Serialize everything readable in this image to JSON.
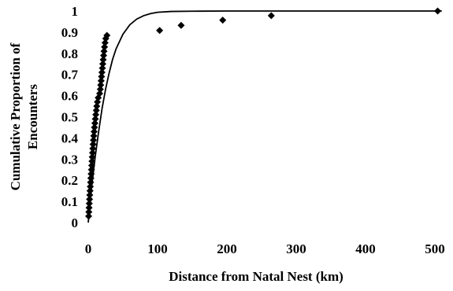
{
  "chart_data": {
    "type": "scatter",
    "title": "",
    "xlabel": "Distance from Natal Nest (km)",
    "ylabel": "Cumulative Proportion of Encounters",
    "ylabel_lines": [
      "Cumulative Proportion of",
      "Encounters"
    ],
    "xlim": [
      0,
      500
    ],
    "ylim": [
      0,
      1
    ],
    "x_ticks": [
      0,
      100,
      200,
      300,
      400,
      500
    ],
    "y_ticks": [
      0,
      0.1,
      0.2,
      0.3,
      0.4,
      0.5,
      0.6,
      0.7,
      0.8,
      0.9,
      1
    ],
    "x_tick_labels": [
      "0",
      "100",
      "200",
      "300",
      "400",
      "500"
    ],
    "y_tick_labels": [
      "0",
      "0.1",
      "0.2",
      "0.3",
      "0.4",
      "0.5",
      "0.6",
      "0.7",
      "0.8",
      "0.9",
      "1"
    ],
    "grid": false,
    "legend": "none",
    "series": [
      {
        "kind": "points",
        "marker": "diamond",
        "color": "#000000",
        "points": [
          [
            0.6,
            0.03
          ],
          [
            0.9,
            0.05
          ],
          [
            1.2,
            0.07
          ],
          [
            1.5,
            0.09
          ],
          [
            1.9,
            0.11
          ],
          [
            2.2,
            0.13
          ],
          [
            2.6,
            0.15
          ],
          [
            3.0,
            0.17
          ],
          [
            3.4,
            0.19
          ],
          [
            3.8,
            0.21
          ],
          [
            4.2,
            0.23
          ],
          [
            4.6,
            0.25
          ],
          [
            5.0,
            0.27
          ],
          [
            5.4,
            0.29
          ],
          [
            5.8,
            0.31
          ],
          [
            6.2,
            0.33
          ],
          [
            6.6,
            0.35
          ],
          [
            7.0,
            0.37
          ],
          [
            7.5,
            0.39
          ],
          [
            8.0,
            0.41
          ],
          [
            8.5,
            0.43
          ],
          [
            9.0,
            0.45
          ],
          [
            9.6,
            0.47
          ],
          [
            10.2,
            0.49
          ],
          [
            10.9,
            0.51
          ],
          [
            11.6,
            0.53
          ],
          [
            12.3,
            0.55
          ],
          [
            13.2,
            0.57
          ],
          [
            14.4,
            0.59
          ],
          [
            16.5,
            0.61
          ],
          [
            17.4,
            0.63
          ],
          [
            18.0,
            0.65
          ],
          [
            18.6,
            0.67
          ],
          [
            19.2,
            0.69
          ],
          [
            19.8,
            0.71
          ],
          [
            20.4,
            0.73
          ],
          [
            21.0,
            0.75
          ],
          [
            21.6,
            0.77
          ],
          [
            22.2,
            0.79
          ],
          [
            22.8,
            0.81
          ],
          [
            23.5,
            0.83
          ],
          [
            24.3,
            0.85
          ],
          [
            25.3,
            0.87
          ],
          [
            27.0,
            0.885
          ],
          [
            103,
            0.908
          ],
          [
            134,
            0.932
          ],
          [
            194,
            0.957
          ],
          [
            264,
            0.978
          ],
          [
            504,
            1.0
          ]
        ]
      },
      {
        "kind": "line",
        "color": "#000000",
        "points": [
          [
            0,
            0.0
          ],
          [
            2,
            0.07
          ],
          [
            5,
            0.17
          ],
          [
            10,
            0.31
          ],
          [
            15,
            0.43
          ],
          [
            20,
            0.54
          ],
          [
            25,
            0.63
          ],
          [
            30,
            0.705
          ],
          [
            35,
            0.77
          ],
          [
            40,
            0.82
          ],
          [
            50,
            0.89
          ],
          [
            60,
            0.935
          ],
          [
            70,
            0.962
          ],
          [
            80,
            0.978
          ],
          [
            90,
            0.988
          ],
          [
            100,
            0.994
          ],
          [
            120,
            0.998
          ],
          [
            150,
            0.999
          ],
          [
            200,
            1.0
          ],
          [
            300,
            1.0
          ],
          [
            400,
            1.0
          ],
          [
            500,
            1.0
          ],
          [
            510,
            1.0
          ]
        ]
      }
    ]
  }
}
